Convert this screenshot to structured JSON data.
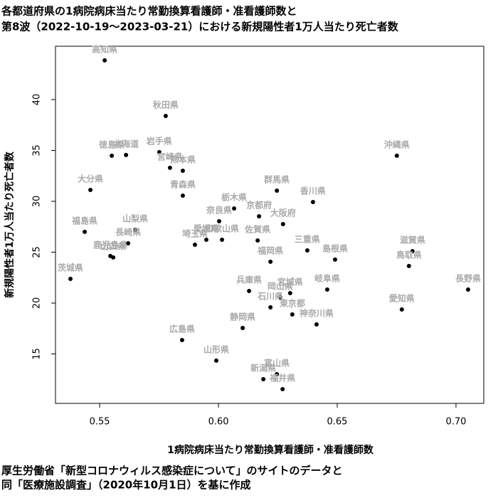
{
  "chart_data": {
    "type": "scatter",
    "title": [
      "各都道府県の1病院病床当たり常勤換算看護師・准看護師数と",
      "第8波（2022-10-19〜2023-03-21）における新規陽性者1万人当たり死亡者数"
    ],
    "xlabel": "1病院病床当たり常勤換算看護師・准看護師数",
    "ylabel": "新規陽性者1万人当たり死亡者数",
    "caption": [
      "厚生労働省「新型コロナウィルス感染症について」のサイトのデータと",
      "同「医療施設調査」（2020年10月1日）を基に作成"
    ],
    "xlim": [
      0.5314,
      0.7117
    ],
    "ylim": [
      10.14,
      45.24
    ],
    "xticks": [
      0.55,
      {
        "value": 0.6,
        "label": "0.60"
      },
      0.65,
      {
        "value": 0.7,
        "label": "0.70"
      }
    ],
    "yticks": [
      15,
      20,
      25,
      30,
      35,
      40
    ],
    "color": "#000000",
    "label_color": "#aaaaaa",
    "point_labels": [
      "高知県",
      "秋田県",
      "徳島県",
      "北海道",
      "岩手県",
      "宮崎県",
      "熊本県",
      "沖縄県",
      "大分県",
      "青森県",
      "群馬県",
      "香川県",
      "栃木県",
      "京都府",
      "奈良県",
      "大阪府",
      "福島県",
      "山梨県",
      "愛媛県",
      "和歌山県",
      "佐賀県",
      "長崎県",
      "埼玉県",
      "三重県",
      "滋賀県",
      "島根県",
      "鹿児島県",
      "山口県",
      "福岡県",
      "鳥取県",
      "茨城県",
      "長野県",
      "岐阜県",
      "兵庫県",
      "宮城県",
      "岡山県",
      "石川県",
      "東京都",
      "愛知県",
      "神奈川県",
      "静岡県",
      "広島県",
      "山形県",
      "富山県",
      "新潟県",
      "福井県"
    ],
    "x": [
      0.5521,
      0.5778,
      0.5551,
      0.5611,
      0.5751,
      0.5796,
      0.585,
      0.6751,
      0.5461,
      0.585,
      0.6246,
      0.6398,
      0.6066,
      0.6171,
      0.6003,
      0.6272,
      0.5437,
      0.565,
      0.5949,
      0.6015,
      0.6165,
      0.562,
      0.5901,
      0.6374,
      0.6817,
      0.6491,
      0.5545,
      0.5557,
      0.6219,
      0.6802,
      0.5377,
      0.7051,
      0.6458,
      0.6129,
      0.6302,
      0.626,
      0.6219,
      0.6311,
      0.6772,
      0.6413,
      0.6102,
      0.5847,
      0.5991,
      0.6246,
      0.6189,
      0.627
    ],
    "values": [
      43.85,
      38.39,
      34.48,
      34.55,
      34.83,
      33.29,
      33.0,
      34.48,
      31.12,
      30.56,
      31.05,
      29.93,
      29.3,
      28.53,
      28.04,
      27.76,
      27.0,
      27.2,
      26.22,
      26.22,
      26.15,
      25.87,
      25.73,
      25.17,
      25.1,
      24.27,
      24.62,
      24.48,
      24.06,
      23.64,
      22.38,
      21.33,
      21.33,
      21.19,
      20.98,
      20.56,
      19.58,
      18.88,
      19.37,
      17.9,
      17.55,
      16.36,
      14.34,
      13.01,
      12.52,
      11.54
    ]
  }
}
